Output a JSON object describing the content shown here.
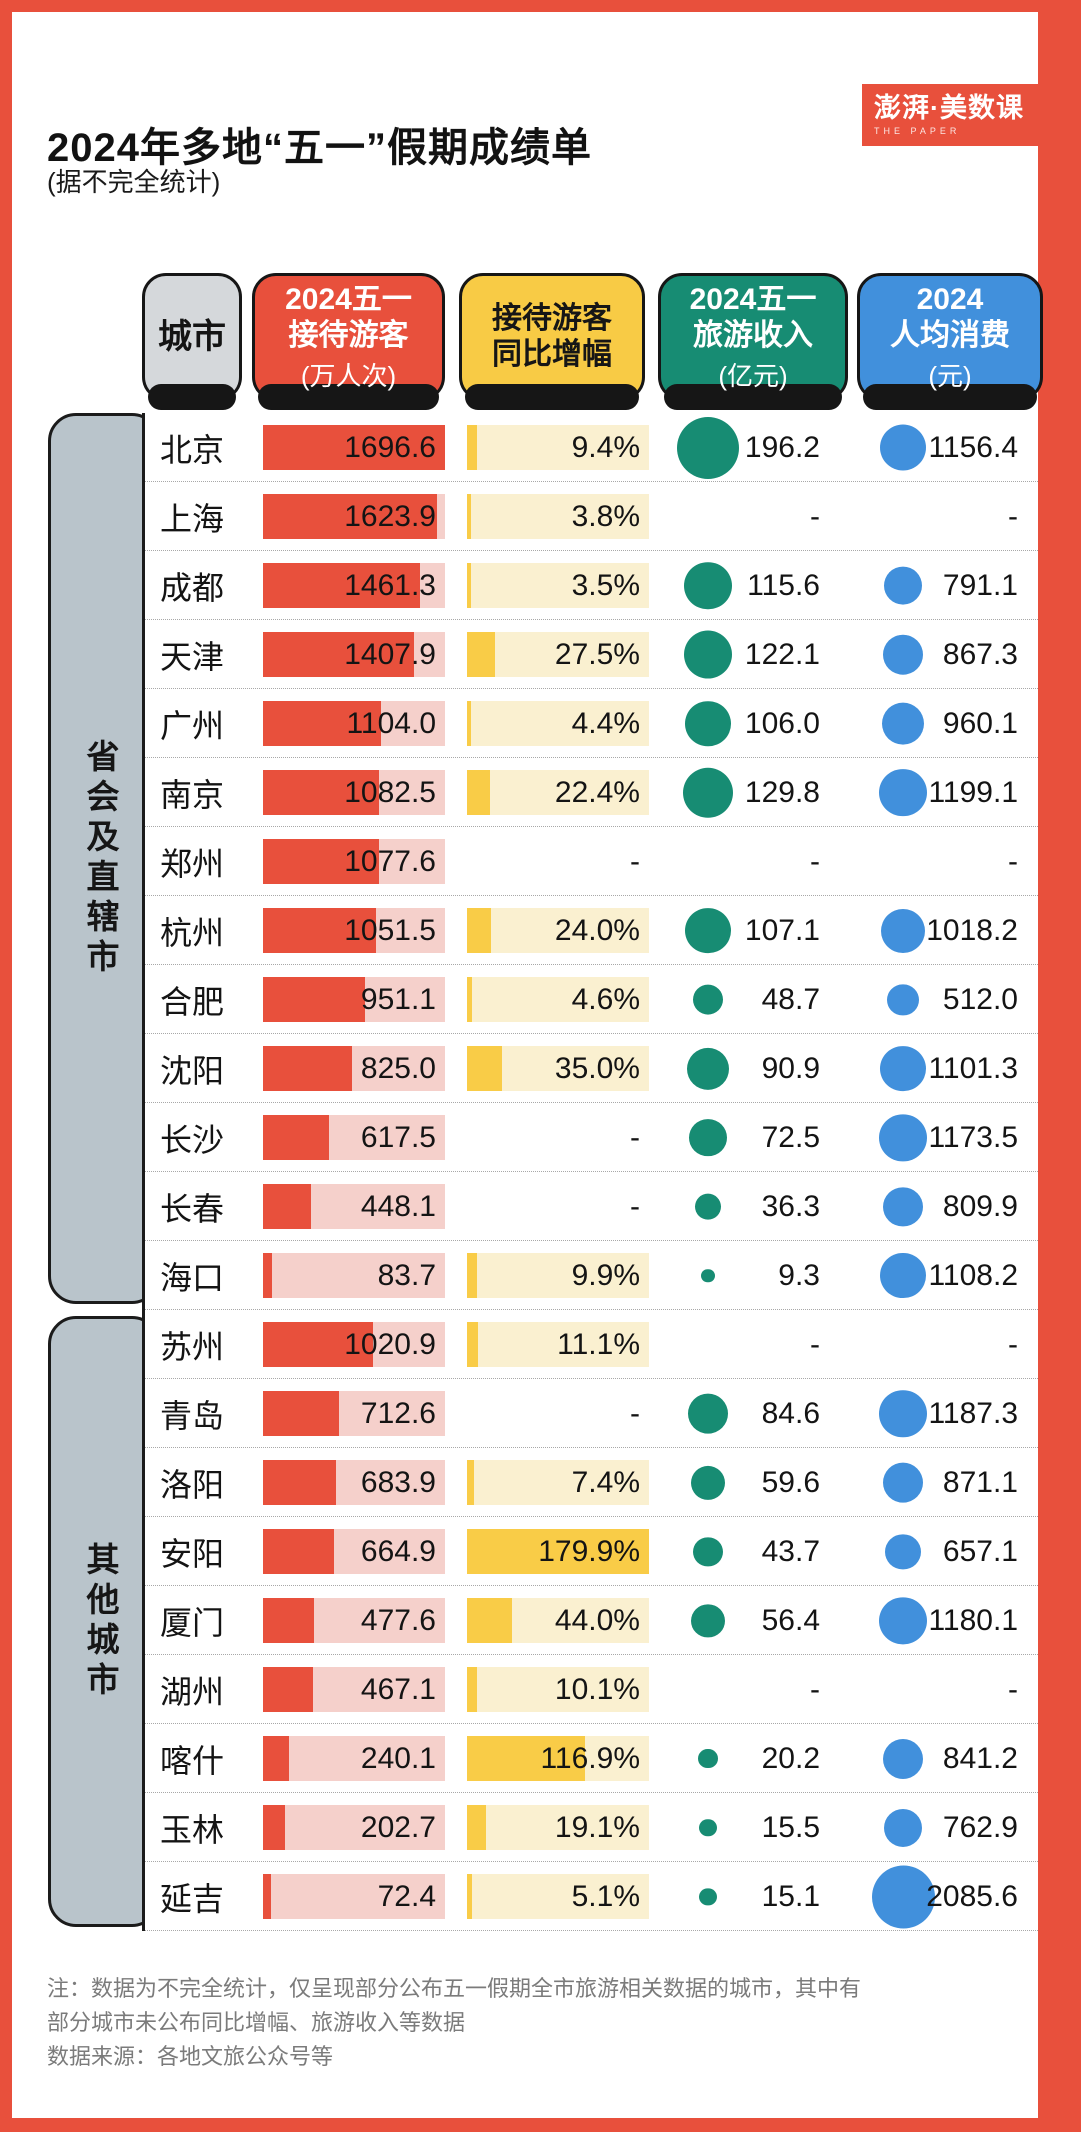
{
  "header": {
    "title": "2024年多地“五一”假期成绩单",
    "subtitle": "(据不完全统计)",
    "logo": {
      "text": "澎湃·美数课",
      "subtext": "THE PAPER"
    }
  },
  "theme": {
    "frame_red": "#E8503C",
    "visitors_bar": "#E8503C",
    "visitors_track": "#F5D0CB",
    "growth_header": "#F8CB45",
    "growth_fill": "#F9CC47",
    "growth_track": "#FAF0D0",
    "revenue_teal": "#178C73",
    "spend_blue": "#4190DC",
    "city_header_gray": "#D5D8DB",
    "group_bracket_gray": "#B9C4CB",
    "note_gray": "#7B7B7B"
  },
  "table": {
    "columns": [
      {
        "label": "城市",
        "unit": ""
      },
      {
        "label": "2024五一\n接待游客",
        "unit": "(万人次)"
      },
      {
        "label": "接待游客\n同比增幅",
        "unit": ""
      },
      {
        "label": "2024五一\n旅游收入",
        "unit": "(亿元)"
      },
      {
        "label": "2024\n人均消费",
        "unit": "(元)"
      }
    ],
    "missing_placeholder": "-"
  },
  "notes": {
    "line1": "注：数据为不完全统计，仅呈现部分公布五一假期全市旅游相关数据的城市，其中有部分城市未公布同比增幅、旅游收入等数据",
    "line2": "数据来源：各地文旅公众号等"
  },
  "chart_data": {
    "type": "table",
    "title": "2024年多地“五一”假期成绩单",
    "columns": [
      "城市",
      "2024五一接待游客(万人次)",
      "接待游客同比增幅(%)",
      "2024五一旅游收入(亿元)",
      "2024人均消费(元)"
    ],
    "visual_encoding": {
      "visitors": "bar length, full track = max 1696.6",
      "growth": "bar length, full track = max 179.9%",
      "revenue": "circle area, max 196.2",
      "spend": "circle area, max 2085.6",
      "missing": "shown as dash"
    },
    "groups": [
      {
        "label": "省会及直辖市",
        "rows": [
          {
            "city": "北京",
            "visitors": 1696.6,
            "growth": 9.4,
            "revenue": 196.2,
            "spend": 1156.4
          },
          {
            "city": "上海",
            "visitors": 1623.9,
            "growth": 3.8,
            "revenue": null,
            "spend": null
          },
          {
            "city": "成都",
            "visitors": 1461.3,
            "growth": 3.5,
            "revenue": 115.6,
            "spend": 791.1
          },
          {
            "city": "天津",
            "visitors": 1407.9,
            "growth": 27.5,
            "revenue": 122.1,
            "spend": 867.3
          },
          {
            "city": "广州",
            "visitors": 1104.0,
            "growth": 4.4,
            "revenue": 106.0,
            "spend": 960.1
          },
          {
            "city": "南京",
            "visitors": 1082.5,
            "growth": 22.4,
            "revenue": 129.8,
            "spend": 1199.1
          },
          {
            "city": "郑州",
            "visitors": 1077.6,
            "growth": null,
            "revenue": null,
            "spend": null
          },
          {
            "city": "杭州",
            "visitors": 1051.5,
            "growth": 24.0,
            "revenue": 107.1,
            "spend": 1018.2
          },
          {
            "city": "合肥",
            "visitors": 951.1,
            "growth": 4.6,
            "revenue": 48.7,
            "spend": 512.0
          },
          {
            "city": "沈阳",
            "visitors": 825.0,
            "growth": 35.0,
            "revenue": 90.9,
            "spend": 1101.3
          },
          {
            "city": "长沙",
            "visitors": 617.5,
            "growth": null,
            "revenue": 72.5,
            "spend": 1173.5
          },
          {
            "city": "长春",
            "visitors": 448.1,
            "growth": null,
            "revenue": 36.3,
            "spend": 809.9
          },
          {
            "city": "海口",
            "visitors": 83.7,
            "growth": 9.9,
            "revenue": 9.3,
            "spend": 1108.2
          }
        ]
      },
      {
        "label": "其他城市",
        "rows": [
          {
            "city": "苏州",
            "visitors": 1020.9,
            "growth": 11.1,
            "revenue": null,
            "spend": null
          },
          {
            "city": "青岛",
            "visitors": 712.6,
            "growth": null,
            "revenue": 84.6,
            "spend": 1187.3
          },
          {
            "city": "洛阳",
            "visitors": 683.9,
            "growth": 7.4,
            "revenue": 59.6,
            "spend": 871.1
          },
          {
            "city": "安阳",
            "visitors": 664.9,
            "growth": 179.9,
            "revenue": 43.7,
            "spend": 657.1
          },
          {
            "city": "厦门",
            "visitors": 477.6,
            "growth": 44.0,
            "revenue": 56.4,
            "spend": 1180.1
          },
          {
            "city": "湖州",
            "visitors": 467.1,
            "growth": 10.1,
            "revenue": null,
            "spend": null
          },
          {
            "city": "喀什",
            "visitors": 240.1,
            "growth": 116.9,
            "revenue": 20.2,
            "spend": 841.2
          },
          {
            "city": "玉林",
            "visitors": 202.7,
            "growth": 19.1,
            "revenue": 15.5,
            "spend": 762.9
          },
          {
            "city": "延吉",
            "visitors": 72.4,
            "growth": 5.1,
            "revenue": 15.1,
            "spend": 2085.6
          }
        ]
      }
    ]
  }
}
